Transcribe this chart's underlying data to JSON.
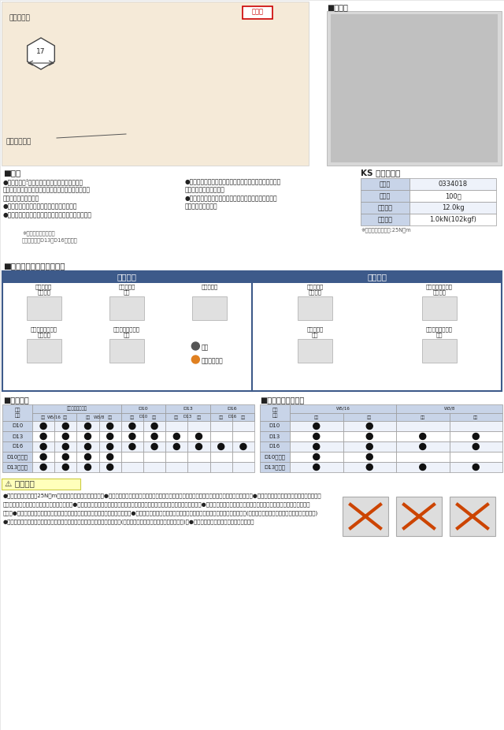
{
  "bg_color": "#ffffff",
  "section_header_color": "#3d5a8a",
  "image_area_color": "#f5ead8",
  "product_header": "KS ネオガッツ",
  "table_data": [
    [
      "品　番",
      "0334018"
    ],
    [
      "入　数",
      "100個"
    ],
    [
      "梱包質量",
      "12.0kg"
    ],
    [
      "許容荷重",
      "1.0kN(102kgf)"
    ]
  ],
  "table_note": "※ボルト締付トルク:25N・m",
  "hasami_rows": [
    [
      "D10",
      true,
      true,
      true,
      true,
      true,
      true,
      false,
      false,
      false,
      false
    ],
    [
      "D13",
      true,
      true,
      true,
      true,
      true,
      true,
      true,
      true,
      false,
      false
    ],
    [
      "D16",
      true,
      true,
      true,
      true,
      true,
      true,
      true,
      true,
      true,
      true
    ],
    [
      "D10ダブル",
      true,
      true,
      true,
      true,
      false,
      false,
      false,
      false,
      false,
      false
    ],
    [
      "D13ダブル",
      true,
      true,
      true,
      true,
      false,
      false,
      false,
      false,
      false,
      false
    ]
  ],
  "sepa_rows": [
    [
      "D10",
      true,
      true,
      false,
      false
    ],
    [
      "D13",
      true,
      true,
      true,
      true
    ],
    [
      "D16",
      true,
      true,
      true,
      true
    ],
    [
      "D10ダブル",
      true,
      true,
      false,
      false
    ],
    [
      "D13ダブル",
      true,
      true,
      true,
      true
    ]
  ],
  "header_col_color": "#c8d4e8",
  "row_even_color": "#eef2fa",
  "row_odd_color": "#ffffff",
  "dot_color": "#111111",
  "table_border_color": "#999999",
  "note_bg": "#ffffcc",
  "note_border": "#dddd00"
}
